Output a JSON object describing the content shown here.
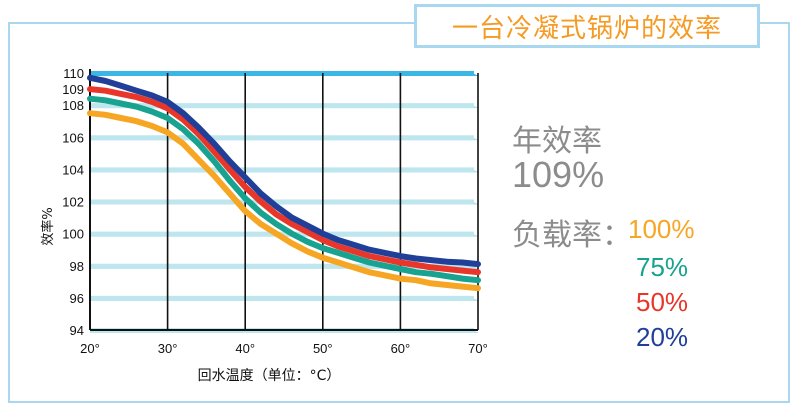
{
  "header": {
    "title": "一台冷凝式锅炉的效率"
  },
  "side_panel": {
    "annual_label": "年效率",
    "annual_value": "109%",
    "load_label": "负载率："
  },
  "chart_data": {
    "type": "line",
    "title": "一台冷凝式锅炉的效率",
    "xlabel": "回水温度（单位：°C）",
    "ylabel": "效率%",
    "x": [
      20,
      30,
      40,
      50,
      60,
      70
    ],
    "x_tick_labels": [
      "20°",
      "30°",
      "40°",
      "50°",
      "60°",
      "70°"
    ],
    "y_ticks": [
      94,
      96,
      98,
      100,
      102,
      104,
      106,
      108,
      109,
      110
    ],
    "xlim": [
      20,
      70
    ],
    "ylim": [
      94,
      110
    ],
    "grid": true,
    "legend_position": "right",
    "series": [
      {
        "name": "20%",
        "color": "#1f3f99",
        "points": [
          [
            20,
            109.7
          ],
          [
            22,
            109.5
          ],
          [
            24,
            109.2
          ],
          [
            26,
            108.9
          ],
          [
            28,
            108.6
          ],
          [
            30,
            108.2
          ],
          [
            32,
            107.5
          ],
          [
            34,
            106.6
          ],
          [
            36,
            105.6
          ],
          [
            38,
            104.5
          ],
          [
            40,
            103.5
          ],
          [
            42,
            102.5
          ],
          [
            44,
            101.7
          ],
          [
            46,
            101.0
          ],
          [
            48,
            100.5
          ],
          [
            50,
            100.0
          ],
          [
            52,
            99.6
          ],
          [
            54,
            99.3
          ],
          [
            56,
            99.0
          ],
          [
            58,
            98.8
          ],
          [
            60,
            98.6
          ],
          [
            62,
            98.45
          ],
          [
            64,
            98.35
          ],
          [
            66,
            98.25
          ],
          [
            68,
            98.2
          ],
          [
            70,
            98.1
          ]
        ]
      },
      {
        "name": "50%",
        "color": "#e8362a",
        "points": [
          [
            20,
            109.0
          ],
          [
            22,
            108.9
          ],
          [
            24,
            108.7
          ],
          [
            26,
            108.5
          ],
          [
            28,
            108.2
          ],
          [
            30,
            107.8
          ],
          [
            32,
            107.1
          ],
          [
            34,
            106.2
          ],
          [
            36,
            105.1
          ],
          [
            38,
            104.0
          ],
          [
            40,
            102.9
          ],
          [
            42,
            102.0
          ],
          [
            44,
            101.2
          ],
          [
            46,
            100.6
          ],
          [
            48,
            100.1
          ],
          [
            50,
            99.6
          ],
          [
            52,
            99.2
          ],
          [
            54,
            98.9
          ],
          [
            56,
            98.6
          ],
          [
            58,
            98.4
          ],
          [
            60,
            98.2
          ],
          [
            62,
            98.05
          ],
          [
            64,
            97.9
          ],
          [
            66,
            97.8
          ],
          [
            68,
            97.7
          ],
          [
            70,
            97.6
          ]
        ]
      },
      {
        "name": "75%",
        "color": "#17a38f",
        "points": [
          [
            20,
            108.4
          ],
          [
            22,
            108.3
          ],
          [
            24,
            108.1
          ],
          [
            26,
            107.9
          ],
          [
            28,
            107.6
          ],
          [
            30,
            107.2
          ],
          [
            32,
            106.5
          ],
          [
            34,
            105.6
          ],
          [
            36,
            104.5
          ],
          [
            38,
            103.3
          ],
          [
            40,
            102.2
          ],
          [
            42,
            101.3
          ],
          [
            44,
            100.6
          ],
          [
            46,
            100.0
          ],
          [
            48,
            99.5
          ],
          [
            50,
            99.1
          ],
          [
            52,
            98.8
          ],
          [
            54,
            98.5
          ],
          [
            56,
            98.2
          ],
          [
            58,
            98.0
          ],
          [
            60,
            97.8
          ],
          [
            62,
            97.6
          ],
          [
            64,
            97.5
          ],
          [
            66,
            97.35
          ],
          [
            68,
            97.2
          ],
          [
            70,
            97.1
          ]
        ]
      },
      {
        "name": "100%",
        "color": "#f6a623",
        "points": [
          [
            20,
            107.5
          ],
          [
            22,
            107.4
          ],
          [
            24,
            107.2
          ],
          [
            26,
            107.0
          ],
          [
            28,
            106.7
          ],
          [
            30,
            106.3
          ],
          [
            32,
            105.6
          ],
          [
            34,
            104.6
          ],
          [
            36,
            103.6
          ],
          [
            38,
            102.5
          ],
          [
            40,
            101.4
          ],
          [
            42,
            100.6
          ],
          [
            44,
            100.0
          ],
          [
            46,
            99.4
          ],
          [
            48,
            98.9
          ],
          [
            50,
            98.5
          ],
          [
            52,
            98.2
          ],
          [
            54,
            97.9
          ],
          [
            56,
            97.6
          ],
          [
            58,
            97.4
          ],
          [
            60,
            97.2
          ],
          [
            62,
            97.1
          ],
          [
            64,
            96.9
          ],
          [
            66,
            96.8
          ],
          [
            68,
            96.7
          ],
          [
            70,
            96.6
          ]
        ]
      }
    ],
    "legend": [
      "100%",
      "75%",
      "50%",
      "20%"
    ]
  }
}
